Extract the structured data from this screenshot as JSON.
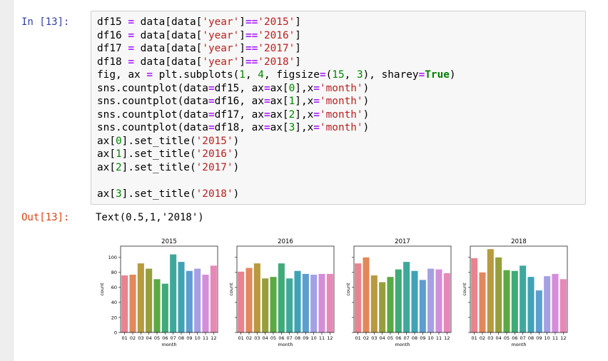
{
  "notebook": {
    "in_prompt": "In [13]:",
    "out_prompt": "Out[13]:",
    "output_text": "Text(0.5,1,'2018')",
    "code_lines": [
      [
        {
          "t": "df15 "
        },
        {
          "t": "=",
          "c": "op"
        },
        {
          "t": " data[data["
        },
        {
          "t": "'year'",
          "c": "str"
        },
        {
          "t": "]"
        },
        {
          "t": "==",
          "c": "op"
        },
        {
          "t": "'2015'",
          "c": "str"
        },
        {
          "t": "]"
        }
      ],
      [
        {
          "t": "df16 "
        },
        {
          "t": "=",
          "c": "op"
        },
        {
          "t": " data[data["
        },
        {
          "t": "'year'",
          "c": "str"
        },
        {
          "t": "]"
        },
        {
          "t": "==",
          "c": "op"
        },
        {
          "t": "'2016'",
          "c": "str"
        },
        {
          "t": "]"
        }
      ],
      [
        {
          "t": "df17 "
        },
        {
          "t": "=",
          "c": "op"
        },
        {
          "t": " data[data["
        },
        {
          "t": "'year'",
          "c": "str"
        },
        {
          "t": "]"
        },
        {
          "t": "==",
          "c": "op"
        },
        {
          "t": "'2017'",
          "c": "str"
        },
        {
          "t": "]"
        }
      ],
      [
        {
          "t": "df18 "
        },
        {
          "t": "=",
          "c": "op"
        },
        {
          "t": " data[data["
        },
        {
          "t": "'year'",
          "c": "str"
        },
        {
          "t": "]"
        },
        {
          "t": "==",
          "c": "op"
        },
        {
          "t": "'2018'",
          "c": "str"
        },
        {
          "t": "]"
        }
      ],
      [
        {
          "t": "fig, ax "
        },
        {
          "t": "=",
          "c": "op"
        },
        {
          "t": " plt.subplots("
        },
        {
          "t": "1",
          "c": "num"
        },
        {
          "t": ", "
        },
        {
          "t": "4",
          "c": "num"
        },
        {
          "t": ", figsize"
        },
        {
          "t": "=",
          "c": "op"
        },
        {
          "t": "("
        },
        {
          "t": "15",
          "c": "num"
        },
        {
          "t": ", "
        },
        {
          "t": "3",
          "c": "num"
        },
        {
          "t": "), sharey"
        },
        {
          "t": "=",
          "c": "op"
        },
        {
          "t": "True",
          "c": "kw"
        },
        {
          "t": ")"
        }
      ],
      [
        {
          "t": "sns.countplot(data"
        },
        {
          "t": "=",
          "c": "op"
        },
        {
          "t": "df15, ax"
        },
        {
          "t": "=",
          "c": "op"
        },
        {
          "t": "ax["
        },
        {
          "t": "0",
          "c": "num"
        },
        {
          "t": "],x"
        },
        {
          "t": "=",
          "c": "op"
        },
        {
          "t": "'month'",
          "c": "str"
        },
        {
          "t": ")"
        }
      ],
      [
        {
          "t": "sns.countplot(data"
        },
        {
          "t": "=",
          "c": "op"
        },
        {
          "t": "df16, ax"
        },
        {
          "t": "=",
          "c": "op"
        },
        {
          "t": "ax["
        },
        {
          "t": "1",
          "c": "num"
        },
        {
          "t": "],x"
        },
        {
          "t": "=",
          "c": "op"
        },
        {
          "t": "'month'",
          "c": "str"
        },
        {
          "t": ")"
        }
      ],
      [
        {
          "t": "sns.countplot(data"
        },
        {
          "t": "=",
          "c": "op"
        },
        {
          "t": "df17, ax"
        },
        {
          "t": "=",
          "c": "op"
        },
        {
          "t": "ax["
        },
        {
          "t": "2",
          "c": "num"
        },
        {
          "t": "],x"
        },
        {
          "t": "=",
          "c": "op"
        },
        {
          "t": "'month'",
          "c": "str"
        },
        {
          "t": ")"
        }
      ],
      [
        {
          "t": "sns.countplot(data"
        },
        {
          "t": "=",
          "c": "op"
        },
        {
          "t": "df18, ax"
        },
        {
          "t": "=",
          "c": "op"
        },
        {
          "t": "ax["
        },
        {
          "t": "3",
          "c": "num"
        },
        {
          "t": "],x"
        },
        {
          "t": "=",
          "c": "op"
        },
        {
          "t": "'month'",
          "c": "str"
        },
        {
          "t": ")"
        }
      ],
      [
        {
          "t": "ax["
        },
        {
          "t": "0",
          "c": "num"
        },
        {
          "t": "].set_title("
        },
        {
          "t": "'2015'",
          "c": "str"
        },
        {
          "t": ")"
        }
      ],
      [
        {
          "t": "ax["
        },
        {
          "t": "1",
          "c": "num"
        },
        {
          "t": "].set_title("
        },
        {
          "t": "'2016'",
          "c": "str"
        },
        {
          "t": ")"
        }
      ],
      [
        {
          "t": "ax["
        },
        {
          "t": "2",
          "c": "num"
        },
        {
          "t": "].set_title("
        },
        {
          "t": "'2017'",
          "c": "str"
        },
        {
          "t": ")"
        }
      ],
      [],
      [
        {
          "t": "ax["
        },
        {
          "t": "3",
          "c": "num"
        },
        {
          "t": "].set_title("
        },
        {
          "t": "'2018'",
          "c": "str"
        },
        {
          "t": ")"
        }
      ]
    ]
  },
  "palette": [
    "#e8838f",
    "#e2885a",
    "#b89a3f",
    "#969f3c",
    "#5aa944",
    "#3eab78",
    "#3fa89c",
    "#3fa3b5",
    "#5e9ecf",
    "#a5a0e3",
    "#d48ed9",
    "#e689b7"
  ],
  "chart_data": [
    {
      "type": "bar",
      "title": "2015",
      "xlabel": "month",
      "ylabel": "count",
      "ylim": [
        0,
        115
      ],
      "yticks": [
        0,
        20,
        40,
        60,
        80,
        100
      ],
      "sharey": true,
      "categories": [
        "01",
        "02",
        "03",
        "04",
        "05",
        "06",
        "07",
        "08",
        "09",
        "10",
        "11",
        "12"
      ],
      "values": [
        76,
        77,
        92,
        85,
        71,
        65,
        104,
        94,
        82,
        85,
        77,
        89
      ]
    },
    {
      "type": "bar",
      "title": "2016",
      "xlabel": "month",
      "ylabel": "count",
      "ylim": [
        0,
        115
      ],
      "yticks": [
        0,
        20,
        40,
        60,
        80,
        100
      ],
      "sharey": true,
      "categories": [
        "01",
        "02",
        "03",
        "04",
        "05",
        "06",
        "07",
        "08",
        "09",
        "10",
        "11",
        "12"
      ],
      "values": [
        81,
        86,
        92,
        72,
        74,
        92,
        72,
        82,
        78,
        77,
        78,
        78
      ]
    },
    {
      "type": "bar",
      "title": "2017",
      "xlabel": "month",
      "ylabel": "count",
      "ylim": [
        0,
        115
      ],
      "yticks": [
        0,
        20,
        40,
        60,
        80,
        100
      ],
      "sharey": true,
      "categories": [
        "01",
        "02",
        "03",
        "04",
        "05",
        "06",
        "07",
        "08",
        "09",
        "10",
        "11",
        "12"
      ],
      "values": [
        92,
        100,
        76,
        67,
        74,
        84,
        94,
        82,
        70,
        85,
        84,
        79
      ]
    },
    {
      "type": "bar",
      "title": "2018",
      "xlabel": "month",
      "ylabel": "count",
      "ylim": [
        0,
        115
      ],
      "yticks": [
        0,
        20,
        40,
        60,
        80,
        100
      ],
      "sharey": true,
      "categories": [
        "01",
        "02",
        "03",
        "04",
        "05",
        "06",
        "07",
        "08",
        "09",
        "10",
        "11",
        "12"
      ],
      "values": [
        99,
        80,
        111,
        100,
        83,
        82,
        89,
        74,
        56,
        75,
        78,
        71
      ]
    }
  ]
}
